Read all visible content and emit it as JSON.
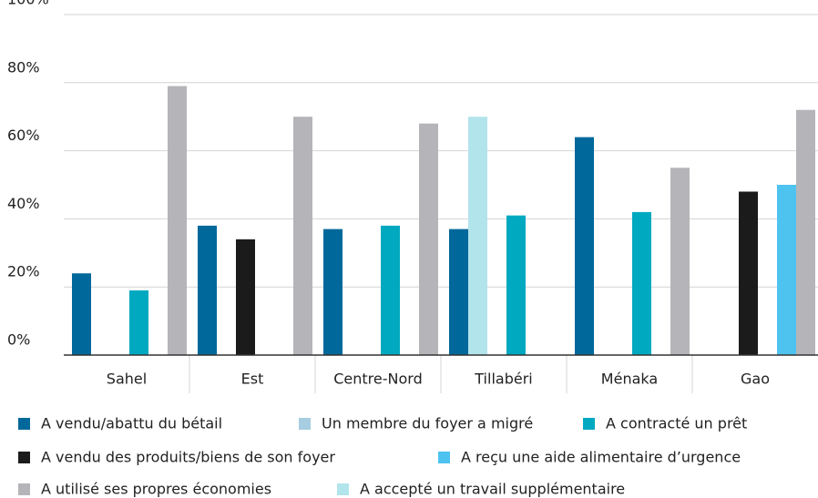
{
  "chart_data": {
    "type": "bar",
    "categories": [
      "Sahel",
      "Est",
      "Centre-Nord",
      "Tillabéri",
      "Ménaka",
      "Gao"
    ],
    "series": [
      {
        "name": "A vendu/abattu du bétail",
        "color": "#00689a",
        "values": [
          24,
          38,
          37,
          37,
          64,
          0
        ]
      },
      {
        "name": "Un membre du foyer a migré",
        "color": "#a6cde0",
        "values": [
          0,
          0,
          0,
          0,
          0,
          0
        ]
      },
      {
        "name": "A contracté un prêt",
        "color": "#00a9c0",
        "values": [
          19,
          0,
          38,
          41,
          42,
          0
        ]
      },
      {
        "name": "A vendu des produits/biens de son foyer",
        "color": "#1b1b1b",
        "values": [
          0,
          34,
          0,
          0,
          0,
          48
        ]
      },
      {
        "name": "A reçu une aide alimentaire d’urgence",
        "color": "#4ec3ef",
        "values": [
          0,
          0,
          0,
          0,
          0,
          50
        ]
      },
      {
        "name": "A utilisé ses propres économies",
        "color": "#b5b5b9",
        "values": [
          79,
          70,
          68,
          0,
          55,
          72
        ]
      },
      {
        "name": "A accepté un travail supplémentaire",
        "color": "#b2e4ec",
        "values": [
          0,
          0,
          0,
          70,
          0,
          0
        ]
      }
    ],
    "ylim": [
      0,
      100
    ],
    "yticks": [
      {
        "value": 0,
        "label": "0%"
      },
      {
        "value": 20,
        "label": "20%"
      },
      {
        "value": 40,
        "label": "40%"
      },
      {
        "value": 60,
        "label": "60%"
      },
      {
        "value": 80,
        "label": "80%"
      },
      {
        "value": 100,
        "label": "100%"
      }
    ],
    "grid": true
  }
}
